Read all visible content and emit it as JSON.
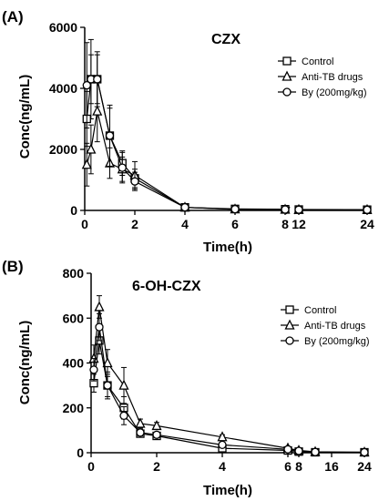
{
  "chart_data": [
    {
      "panel_label": "(A)",
      "type": "line",
      "title": "CZX",
      "xlabel": "Time(h)",
      "ylabel": "Conc(ng/mL)",
      "ylim": [
        0,
        6000
      ],
      "yticks": [
        0,
        2000,
        4000,
        6000
      ],
      "xticks": [
        "0",
        "2",
        "4",
        "6",
        "8",
        "12",
        "24"
      ],
      "legend_position": "top-right",
      "series": [
        {
          "name": "Control",
          "marker": "square",
          "x": [
            0.083,
            0.25,
            0.5,
            1,
            1.5,
            2,
            4,
            6,
            8,
            12,
            24
          ],
          "y": [
            3000,
            4300,
            4300,
            2450,
            1550,
            1050,
            100,
            50,
            40,
            30,
            25
          ],
          "err": [
            900,
            1300,
            800,
            900,
            400,
            300,
            40,
            20,
            15,
            10,
            10
          ]
        },
        {
          "name": "Anti-TB drugs",
          "marker": "triangle",
          "x": [
            0.083,
            0.25,
            0.5,
            1,
            1.5,
            2,
            4,
            6,
            8,
            12,
            24
          ],
          "y": [
            1500,
            2000,
            3250,
            1550,
            1350,
            1150,
            100,
            40,
            30,
            25,
            20
          ],
          "err": [
            700,
            800,
            1000,
            500,
            400,
            450,
            40,
            20,
            15,
            10,
            10
          ]
        },
        {
          "name": "By (200mg/kg)",
          "marker": "circle",
          "x": [
            0.083,
            0.25,
            0.5,
            1,
            1.5,
            2,
            4,
            6,
            8,
            12,
            24
          ],
          "y": [
            4100,
            4300,
            4300,
            2450,
            1400,
            950,
            100,
            40,
            30,
            25,
            20
          ],
          "err": [
            1400,
            800,
            900,
            1000,
            500,
            300,
            40,
            20,
            15,
            10,
            10
          ]
        }
      ]
    },
    {
      "panel_label": "(B)",
      "type": "line",
      "title": "6-OH-CZX",
      "xlabel": "Time(h)",
      "ylabel": "Conc(ng/mL)",
      "ylim": [
        0,
        800
      ],
      "yticks": [
        0,
        200,
        400,
        600,
        800
      ],
      "xticks": [
        "0",
        "2",
        "4",
        "6",
        "8",
        "16",
        "24"
      ],
      "legend_position": "top-right",
      "series": [
        {
          "name": "Control",
          "marker": "square",
          "x": [
            0.083,
            0.25,
            0.5,
            1,
            1.5,
            2,
            4,
            6,
            8,
            12,
            24
          ],
          "y": [
            310,
            500,
            300,
            200,
            85,
            75,
            20,
            10,
            5,
            2,
            2
          ],
          "err": [
            40,
            60,
            50,
            50,
            15,
            10,
            5,
            3,
            2,
            1,
            1
          ]
        },
        {
          "name": "Anti-TB drugs",
          "marker": "triangle",
          "x": [
            0.083,
            0.25,
            0.5,
            1,
            1.5,
            2,
            4,
            6,
            8,
            12,
            24
          ],
          "y": [
            420,
            650,
            400,
            300,
            130,
            120,
            70,
            20,
            10,
            4,
            2
          ],
          "err": [
            60,
            50,
            60,
            80,
            20,
            15,
            10,
            5,
            3,
            2,
            1
          ]
        },
        {
          "name": "By (200mg/kg)",
          "marker": "circle",
          "x": [
            0.083,
            0.25,
            0.5,
            1,
            1.5,
            2,
            4,
            6,
            8,
            12,
            24
          ],
          "y": [
            370,
            560,
            300,
            165,
            90,
            80,
            35,
            15,
            8,
            3,
            2
          ],
          "err": [
            50,
            60,
            60,
            40,
            15,
            10,
            5,
            4,
            2,
            1,
            1
          ]
        }
      ]
    }
  ]
}
